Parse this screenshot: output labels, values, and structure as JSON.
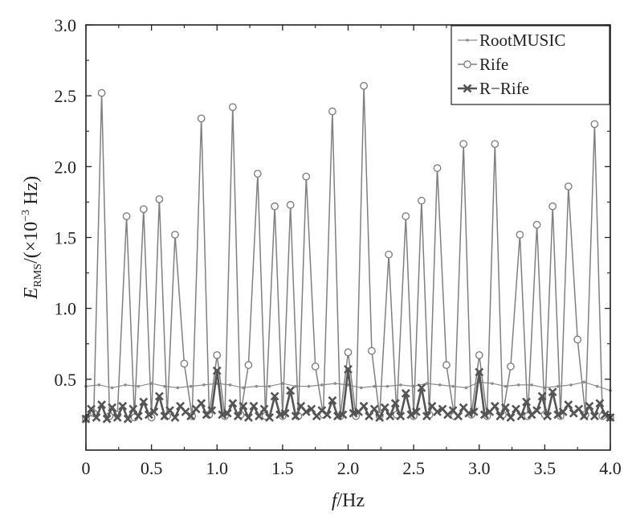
{
  "chart_data": {
    "type": "line",
    "xlim": [
      0,
      4.0
    ],
    "ylim": [
      0.0,
      3.0
    ],
    "xticks": [
      "0",
      "0.5",
      "1.0",
      "1.5",
      "2.0",
      "2.5",
      "3.0",
      "3.5",
      "4.0"
    ],
    "yticks": [
      "3.0",
      "2.5",
      "2.0",
      "1.5",
      "1.0",
      "0.5"
    ],
    "xlabel": {
      "italic": "f",
      "rest": "/Hz"
    },
    "ylabel": {
      "italic": "E",
      "sub": "RMS",
      "rest": "/(×10",
      "sup": "−3",
      "tail": " Hz)"
    },
    "grid": false,
    "legend_position": "top-right",
    "series": [
      {
        "name": "RootMUSIC",
        "color": "#8c8c8c",
        "marker": "dot",
        "x": [
          0.0,
          0.1,
          0.2,
          0.3,
          0.4,
          0.5,
          0.6,
          0.7,
          0.8,
          0.9,
          1.0,
          1.1,
          1.2,
          1.3,
          1.4,
          1.5,
          1.6,
          1.7,
          1.8,
          1.9,
          2.0,
          2.1,
          2.2,
          2.3,
          2.4,
          2.5,
          2.6,
          2.7,
          2.8,
          2.9,
          3.0,
          3.1,
          3.2,
          3.3,
          3.4,
          3.5,
          3.6,
          3.7,
          3.8,
          3.9,
          4.0
        ],
        "y": [
          0.45,
          0.46,
          0.44,
          0.46,
          0.45,
          0.47,
          0.45,
          0.44,
          0.45,
          0.46,
          0.47,
          0.46,
          0.44,
          0.45,
          0.45,
          0.47,
          0.45,
          0.45,
          0.46,
          0.47,
          0.46,
          0.44,
          0.45,
          0.45,
          0.46,
          0.45,
          0.47,
          0.46,
          0.45,
          0.44,
          0.48,
          0.47,
          0.45,
          0.46,
          0.46,
          0.44,
          0.45,
          0.46,
          0.48,
          0.45,
          0.42
        ]
      },
      {
        "name": "Rife",
        "color": "#808080",
        "marker": "circle",
        "x": [
          0.0,
          0.06,
          0.12,
          0.18,
          0.24,
          0.31,
          0.37,
          0.44,
          0.5,
          0.56,
          0.62,
          0.68,
          0.75,
          0.81,
          0.88,
          0.94,
          1.0,
          1.06,
          1.12,
          1.18,
          1.24,
          1.31,
          1.37,
          1.44,
          1.5,
          1.56,
          1.62,
          1.68,
          1.75,
          1.81,
          1.88,
          1.94,
          2.0,
          2.06,
          2.12,
          2.18,
          2.24,
          2.31,
          2.37,
          2.44,
          2.5,
          2.56,
          2.62,
          2.68,
          2.75,
          2.81,
          2.88,
          2.94,
          3.0,
          3.06,
          3.12,
          3.18,
          3.24,
          3.31,
          3.37,
          3.44,
          3.5,
          3.56,
          3.62,
          3.68,
          3.75,
          3.81,
          3.88,
          3.94,
          4.0
        ],
        "y": [
          0.22,
          0.26,
          2.52,
          0.24,
          0.25,
          1.65,
          0.23,
          1.7,
          0.23,
          1.77,
          0.24,
          1.52,
          0.61,
          0.24,
          2.34,
          0.25,
          0.67,
          0.24,
          2.42,
          0.25,
          0.6,
          1.95,
          0.24,
          1.72,
          0.24,
          1.73,
          0.24,
          1.93,
          0.59,
          0.25,
          2.39,
          0.24,
          0.69,
          0.24,
          2.57,
          0.7,
          0.24,
          1.38,
          0.25,
          1.65,
          0.24,
          1.76,
          0.25,
          1.99,
          0.6,
          0.24,
          2.16,
          0.25,
          0.67,
          0.24,
          2.16,
          0.25,
          0.59,
          1.52,
          0.24,
          1.59,
          0.25,
          1.72,
          0.24,
          1.86,
          0.78,
          0.25,
          2.3,
          0.24,
          0.23
        ]
      },
      {
        "name": "R−Rife",
        "color": "#555555",
        "marker": "x",
        "x": [
          0.0,
          0.04,
          0.08,
          0.12,
          0.16,
          0.2,
          0.24,
          0.28,
          0.32,
          0.36,
          0.4,
          0.44,
          0.48,
          0.52,
          0.56,
          0.6,
          0.64,
          0.68,
          0.72,
          0.76,
          0.8,
          0.84,
          0.88,
          0.92,
          0.96,
          1.0,
          1.04,
          1.08,
          1.12,
          1.16,
          1.2,
          1.24,
          1.28,
          1.32,
          1.36,
          1.4,
          1.44,
          1.48,
          1.52,
          1.56,
          1.6,
          1.64,
          1.68,
          1.72,
          1.76,
          1.8,
          1.84,
          1.88,
          1.92,
          1.96,
          2.0,
          2.04,
          2.08,
          2.12,
          2.16,
          2.2,
          2.24,
          2.28,
          2.32,
          2.36,
          2.4,
          2.44,
          2.48,
          2.52,
          2.56,
          2.6,
          2.64,
          2.68,
          2.72,
          2.76,
          2.8,
          2.84,
          2.88,
          2.92,
          2.96,
          3.0,
          3.04,
          3.08,
          3.12,
          3.16,
          3.2,
          3.24,
          3.28,
          3.32,
          3.36,
          3.4,
          3.44,
          3.48,
          3.52,
          3.56,
          3.6,
          3.64,
          3.68,
          3.72,
          3.76,
          3.8,
          3.84,
          3.88,
          3.92,
          3.96,
          4.0
        ],
        "y": [
          0.22,
          0.29,
          0.23,
          0.32,
          0.22,
          0.3,
          0.23,
          0.31,
          0.22,
          0.29,
          0.24,
          0.34,
          0.25,
          0.27,
          0.38,
          0.24,
          0.28,
          0.23,
          0.31,
          0.27,
          0.24,
          0.29,
          0.33,
          0.25,
          0.28,
          0.56,
          0.25,
          0.26,
          0.33,
          0.24,
          0.31,
          0.23,
          0.31,
          0.24,
          0.29,
          0.23,
          0.38,
          0.25,
          0.26,
          0.42,
          0.24,
          0.31,
          0.27,
          0.29,
          0.24,
          0.28,
          0.25,
          0.35,
          0.24,
          0.25,
          0.57,
          0.26,
          0.27,
          0.31,
          0.24,
          0.29,
          0.23,
          0.3,
          0.24,
          0.33,
          0.24,
          0.4,
          0.25,
          0.27,
          0.44,
          0.24,
          0.31,
          0.27,
          0.29,
          0.25,
          0.28,
          0.24,
          0.3,
          0.26,
          0.27,
          0.55,
          0.25,
          0.27,
          0.31,
          0.24,
          0.3,
          0.23,
          0.29,
          0.24,
          0.34,
          0.25,
          0.28,
          0.38,
          0.24,
          0.41,
          0.25,
          0.27,
          0.32,
          0.26,
          0.29,
          0.24,
          0.31,
          0.24,
          0.33,
          0.25,
          0.23
        ]
      }
    ]
  }
}
